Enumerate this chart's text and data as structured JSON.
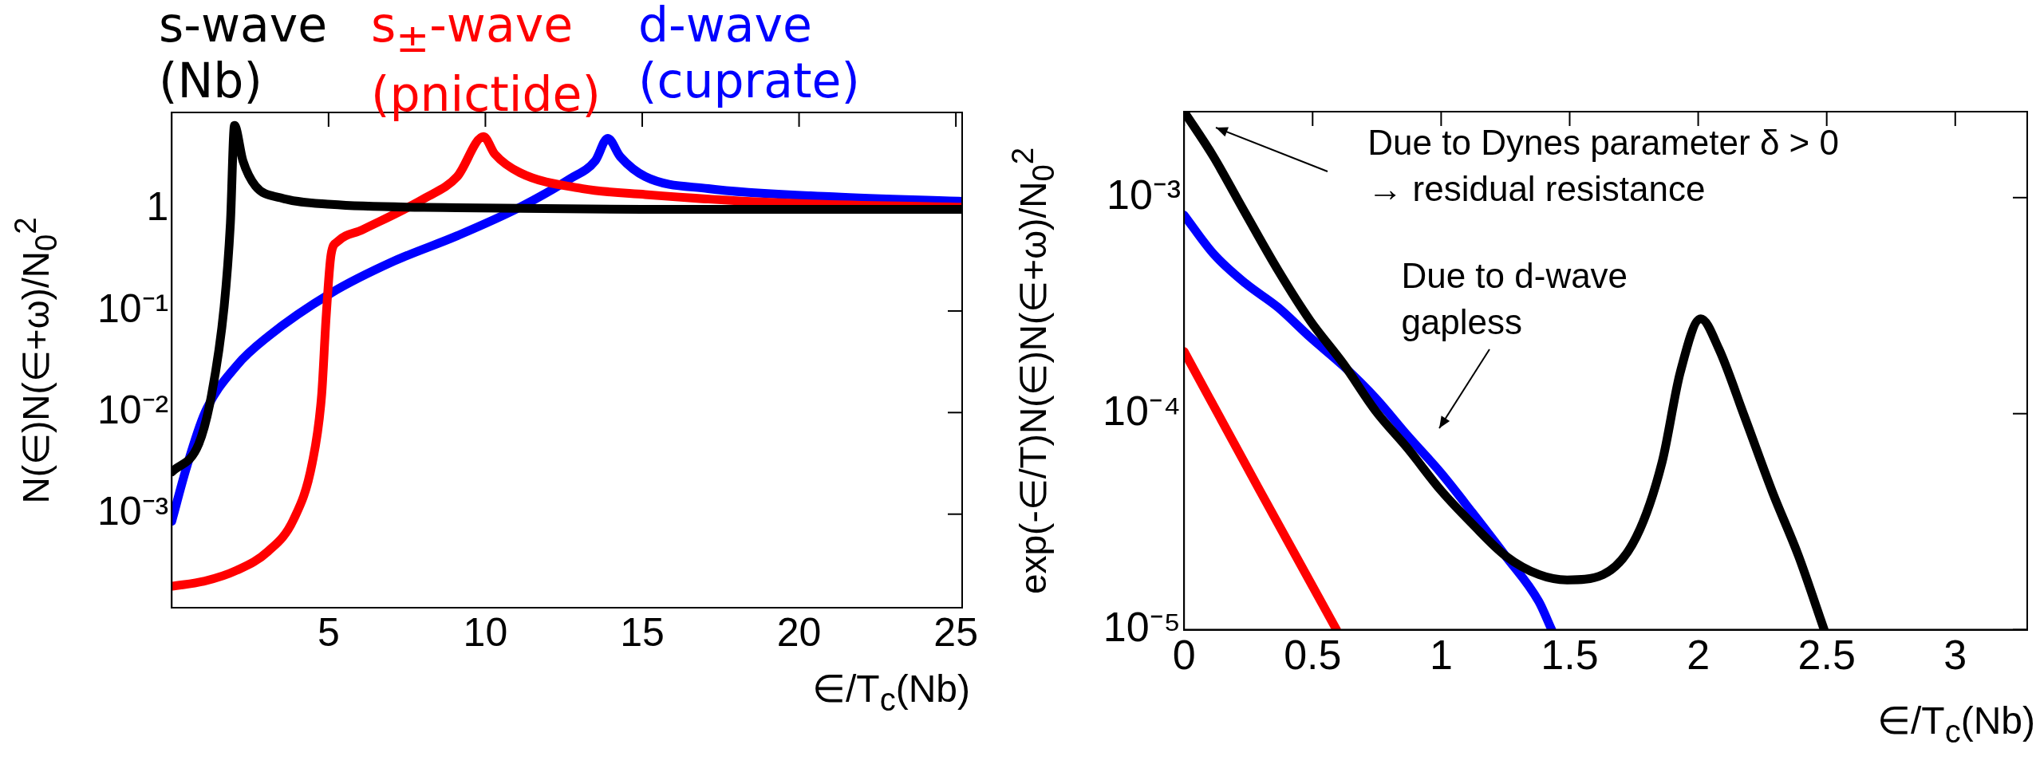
{
  "chart_data": [
    {
      "type": "line",
      "xlabel": "∈/T$_{c}$(Nb)",
      "ylabel": "N(∈)N(∈+ω)/N$_{0}$$^{2}$",
      "log": "y",
      "legend": "top",
      "marker": "none",
      "xlim": [
        0,
        25.2
      ],
      "xticks": [
        5,
        10,
        15,
        20,
        25
      ],
      "ylim": [
        0.00012,
        9
      ],
      "yticks": [
        {
          "value": 0.001,
          "label": "10⁻³"
        },
        {
          "value": 0.01,
          "label": "10⁻²"
        },
        {
          "value": 0.1,
          "label": "10⁻¹"
        },
        1
      ],
      "series": [
        {
          "name": "s-wave\n(Nb)",
          "color": "#000000",
          "x": [
            0,
            0.86,
            1.27,
            1.67,
            1.87,
            2.0,
            2.27,
            2.67,
            3.47,
            5.08,
            9.1,
            15,
            20,
            25.2
          ],
          "values": [
            0.0026,
            0.0049,
            0.015,
            0.11,
            0.73,
            6.7,
            3.0,
            1.7,
            1.3,
            1.12,
            1.04,
            1.0,
            1.0,
            1.0
          ]
        },
        {
          "name": "s$_{±}$-wave\n(pnictide)",
          "color": "#ff0000",
          "x": [
            0,
            1.06,
            2.07,
            3.07,
            3.88,
            4.48,
            4.78,
            4.92,
            5.08,
            5.28,
            6.08,
            8.09,
            9.1,
            9.94,
            10.3,
            11.1,
            13.1,
            15.1,
            19.1,
            25.2
          ],
          "values": [
            0.000195,
            0.00022,
            0.00028,
            0.00043,
            0.00088,
            0.0032,
            0.015,
            0.085,
            0.36,
            0.48,
            0.63,
            1.3,
            2.1,
            5.2,
            3.5,
            2.3,
            1.6,
            1.4,
            1.17,
            1.05
          ]
        },
        {
          "name": "d-wave\n(cuprate)",
          "color": "#0000ff",
          "x": [
            0,
            0.46,
            1.06,
            2.07,
            3.07,
            5.08,
            7.09,
            9.1,
            11.1,
            12.7,
            13.5,
            13.9,
            14.3,
            15.1,
            17.1,
            21.1,
            25.2
          ],
          "values": [
            0.00085,
            0.0028,
            0.01,
            0.029,
            0.056,
            0.15,
            0.31,
            0.55,
            1.05,
            2.0,
            3.0,
            5.0,
            3.3,
            2.1,
            1.6,
            1.33,
            1.2
          ]
        }
      ]
    },
    {
      "type": "line",
      "xlabel": "∈/T$_{c}$(Nb)",
      "ylabel": "exp(-∈/T)N(∈)N(∈+ω)/N$_{0}$$^{2}$",
      "log": "y",
      "marker": "none",
      "xlim": [
        0,
        3.28
      ],
      "xticks": [
        0,
        0.5,
        1,
        1.5,
        2,
        2.5,
        3
      ],
      "ylim": [
        1e-05,
        0.0025
      ],
      "yticks": [
        {
          "value": 1e-05,
          "label": "10⁻⁵"
        },
        {
          "value": 0.0001,
          "label": "10⁻⁴"
        },
        {
          "value": 0.001,
          "label": "10⁻³"
        }
      ],
      "annotations": [
        "Due to Dynes parameter δ > 0\n→ residual resistance",
        "Due to d-wave\ngapless"
      ],
      "series": [
        {
          "color": "#000000",
          "x": [
            0,
            0.114,
            0.24,
            0.366,
            0.49,
            0.62,
            0.745,
            0.87,
            1.0,
            1.12,
            1.25,
            1.38,
            1.49,
            1.63,
            1.76,
            1.86,
            1.93,
            2.01,
            2.08,
            2.18,
            2.29,
            2.39,
            2.49
          ],
          "values": [
            0.0025,
            0.00155,
            0.00084,
            0.00046,
            0.00027,
            0.00017,
            0.000103,
            6.9e-05,
            4.4e-05,
            3.1e-05,
            2.2e-05,
            1.8e-05,
            1.7e-05,
            1.8e-05,
            2.7e-05,
            6e-05,
            0.000155,
            0.000275,
            0.0002,
            9.7e-05,
            4.3e-05,
            2.2e-05,
            1e-05
          ]
        },
        {
          "color": "#0000ff",
          "x": [
            0,
            0.114,
            0.24,
            0.366,
            0.49,
            0.62,
            0.745,
            0.87,
            1.0,
            1.12,
            1.25,
            1.38,
            1.43
          ],
          "values": [
            0.00083,
            0.00055,
            0.0004,
            0.00031,
            0.000226,
            0.000166,
            0.000118,
            7.9e-05,
            5.3e-05,
            3.5e-05,
            2.2e-05,
            1.35e-05,
            1e-05
          ]
        },
        {
          "color": "#ff0000",
          "x": [
            0,
            0.295,
            0.593
          ],
          "values": [
            0.000194,
            4.4e-05,
            1e-05
          ]
        }
      ]
    }
  ]
}
